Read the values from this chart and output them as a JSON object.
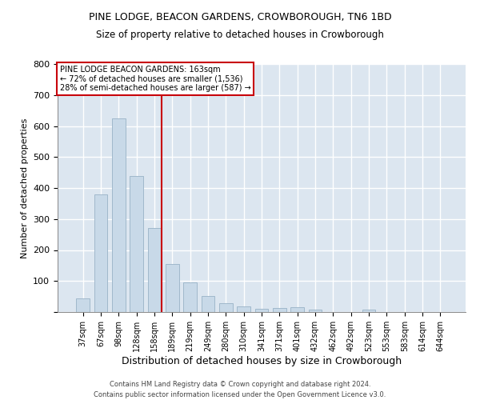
{
  "title_line1": "PINE LODGE, BEACON GARDENS, CROWBOROUGH, TN6 1BD",
  "title_line2": "Size of property relative to detached houses in Crowborough",
  "xlabel": "Distribution of detached houses by size in Crowborough",
  "ylabel": "Number of detached properties",
  "footnote": "Contains HM Land Registry data © Crown copyright and database right 2024.\nContains public sector information licensed under the Open Government Licence v3.0.",
  "bar_labels": [
    "37sqm",
    "67sqm",
    "98sqm",
    "128sqm",
    "158sqm",
    "189sqm",
    "219sqm",
    "249sqm",
    "280sqm",
    "310sqm",
    "341sqm",
    "371sqm",
    "401sqm",
    "432sqm",
    "462sqm",
    "492sqm",
    "523sqm",
    "553sqm",
    "583sqm",
    "614sqm",
    "644sqm"
  ],
  "bar_values": [
    45,
    380,
    625,
    440,
    270,
    155,
    95,
    52,
    28,
    17,
    10,
    12,
    15,
    8,
    0,
    0,
    8,
    0,
    0,
    0,
    0
  ],
  "bar_color": "#c8d9e8",
  "bar_edgecolor": "#a0b8cc",
  "highlight_color": "#c8000a",
  "vline_x_index": 4,
  "ylim": [
    0,
    800
  ],
  "yticks": [
    0,
    100,
    200,
    300,
    400,
    500,
    600,
    700,
    800
  ],
  "annotation_box_text": "PINE LODGE BEACON GARDENS: 163sqm\n← 72% of detached houses are smaller (1,536)\n28% of semi-detached houses are larger (587) →",
  "background_color": "#dce6f0",
  "grid_color": "#ffffff",
  "bar_width": 0.75
}
